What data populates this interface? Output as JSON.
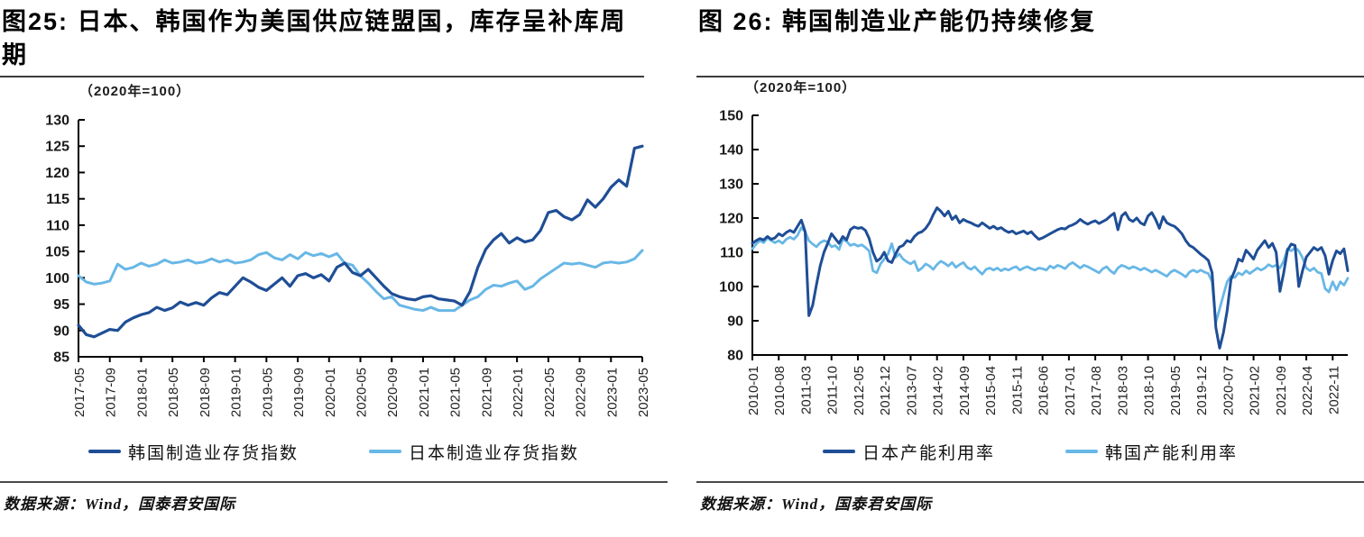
{
  "figures": [
    {
      "title": "图25: 日本、韩国作为美国供应链盟国，库存呈补库周期",
      "source": "数据来源：Wind，国泰君安国际"
    },
    {
      "title": "图 26: 韩国制造业产能仍持续修复",
      "source": "数据来源：Wind，国泰君安国际"
    }
  ],
  "chart_data": [
    {
      "type": "line",
      "title": "日本、韩国作为美国供应链盟国，库存呈补库周期",
      "unit_label": "（2020年=100）",
      "ylim": [
        85,
        130
      ],
      "yticks": [
        85,
        90,
        95,
        100,
        105,
        110,
        115,
        120,
        125,
        130
      ],
      "x_start": "2017-05",
      "months_per_tick": 4,
      "x_tick_labels": [
        "2017-05",
        "2017-09",
        "2018-01",
        "2018-05",
        "2018-09",
        "2019-01",
        "2019-05",
        "2019-09",
        "2020-01",
        "2020-05",
        "2020-09",
        "2021-01",
        "2021-05",
        "2021-09",
        "2022-01",
        "2022-05",
        "2022-09",
        "2023-01",
        "2023-05"
      ],
      "grid": false,
      "legend_position": "bottom",
      "series": [
        {
          "name": "韩国制造业存货指数",
          "color": "#1f4e96",
          "values": [
            91.0,
            89.2,
            88.8,
            89.5,
            90.2,
            90.0,
            91.6,
            92.4,
            93.0,
            93.4,
            94.4,
            93.8,
            94.3,
            95.4,
            94.8,
            95.3,
            94.8,
            96.2,
            97.2,
            96.8,
            98.4,
            100.0,
            99.2,
            98.2,
            97.6,
            98.8,
            100.0,
            98.4,
            100.4,
            100.8,
            100.0,
            100.6,
            99.4,
            102.0,
            102.8,
            101.0,
            100.4,
            101.6,
            100.0,
            98.4,
            97.0,
            96.4,
            96.0,
            95.8,
            96.4,
            96.6,
            96.0,
            95.8,
            95.6,
            94.8,
            97.4,
            102.0,
            105.4,
            107.2,
            108.4,
            106.6,
            107.6,
            106.8,
            107.2,
            109.0,
            112.4,
            112.8,
            111.6,
            111.0,
            112.0,
            114.8,
            113.4,
            115.0,
            117.2,
            118.6,
            117.4,
            124.6,
            125.0
          ]
        },
        {
          "name": "日本制造业存货指数",
          "color": "#68b7e6",
          "values": [
            100.4,
            99.2,
            98.8,
            99.0,
            99.4,
            102.6,
            101.6,
            102.0,
            102.8,
            102.2,
            102.6,
            103.4,
            102.8,
            103.0,
            103.4,
            102.8,
            103.0,
            103.6,
            103.0,
            103.4,
            102.8,
            103.0,
            103.4,
            104.4,
            104.8,
            103.8,
            103.4,
            104.4,
            103.6,
            104.8,
            104.2,
            104.6,
            104.0,
            104.6,
            102.8,
            102.4,
            100.4,
            99.0,
            97.4,
            96.0,
            96.4,
            94.8,
            94.4,
            94.0,
            93.8,
            94.4,
            93.8,
            93.8,
            93.8,
            94.8,
            95.8,
            96.4,
            97.8,
            98.6,
            98.4,
            99.0,
            99.4,
            97.8,
            98.4,
            99.8,
            100.8,
            101.8,
            102.8,
            102.6,
            102.8,
            102.4,
            102.0,
            102.8,
            103.0,
            102.8,
            103.0,
            103.6,
            105.2
          ]
        }
      ]
    },
    {
      "type": "line",
      "title": "韩国制造业产能仍持续修复",
      "unit_label": "（2020年=100）",
      "ylim": [
        80,
        150
      ],
      "yticks": [
        80,
        90,
        100,
        110,
        120,
        130,
        140,
        150
      ],
      "x_start": "2010-01",
      "months_per_tick": 7,
      "x_tick_labels": [
        "2010-01",
        "2010-08",
        "2011-03",
        "2011-10",
        "2012-05",
        "2012-12",
        "2013-07",
        "2014-02",
        "2014-09",
        "2015-04",
        "2015-11",
        "2016-06",
        "2017-01",
        "2017-08",
        "2018-03",
        "2018-10",
        "2019-05",
        "2019-12",
        "2020-07",
        "2021-02",
        "2021-09",
        "2022-04",
        "2022-11"
      ],
      "grid": false,
      "legend_position": "bottom",
      "series": [
        {
          "name": "日本产能利用率",
          "color": "#1f4e96",
          "values": [
            112.6,
            113.4,
            114.0,
            113.6,
            114.6,
            113.8,
            114.2,
            115.4,
            114.8,
            115.8,
            116.4,
            115.8,
            117.6,
            119.4,
            116.0,
            91.5,
            94.5,
            100.5,
            106.0,
            110.0,
            112.6,
            115.4,
            114.0,
            112.6,
            114.6,
            113.6,
            116.6,
            117.4,
            117.0,
            117.2,
            116.4,
            114.0,
            110.0,
            107.4,
            108.2,
            110.0,
            107.5,
            107.0,
            109.5,
            111.5,
            112.0,
            113.4,
            113.0,
            114.6,
            115.6,
            116.0,
            117.0,
            118.6,
            121.0,
            123.0,
            122.0,
            120.6,
            122.0,
            119.6,
            120.6,
            118.6,
            119.6,
            119.0,
            118.6,
            118.0,
            117.6,
            118.6,
            117.8,
            117.0,
            117.6,
            116.8,
            117.2,
            116.4,
            115.8,
            116.2,
            115.4,
            115.8,
            116.2,
            115.4,
            116.0,
            114.8,
            113.8,
            114.2,
            114.8,
            115.4,
            116.0,
            116.6,
            117.0,
            116.8,
            117.6,
            118.0,
            118.6,
            119.6,
            118.8,
            118.2,
            118.8,
            119.2,
            118.4,
            119.0,
            119.6,
            120.6,
            121.4,
            116.6,
            120.6,
            121.6,
            119.6,
            119.0,
            120.0,
            118.6,
            118.0,
            120.6,
            121.6,
            119.6,
            117.0,
            120.4,
            118.6,
            118.0,
            117.6,
            116.6,
            115.4,
            113.4,
            112.0,
            111.4,
            110.4,
            109.4,
            108.6,
            107.6,
            104.0,
            88.0,
            82.0,
            86.5,
            93.0,
            102.0,
            104.6,
            108.0,
            107.4,
            110.6,
            109.4,
            108.0,
            110.6,
            112.0,
            113.4,
            111.4,
            112.6,
            110.0,
            98.6,
            104.0,
            110.6,
            112.4,
            112.0,
            100.0,
            104.6,
            108.6,
            110.0,
            111.4,
            110.6,
            111.4,
            109.0,
            103.6,
            107.6,
            110.4,
            109.6,
            111.0,
            104.6
          ]
        },
        {
          "name": "韩国产能利用率",
          "color": "#68b7e6",
          "values": [
            111.0,
            112.4,
            113.4,
            112.8,
            114.2,
            113.4,
            112.8,
            113.4,
            112.6,
            113.8,
            114.4,
            113.8,
            115.0,
            117.2,
            116.0,
            113.4,
            112.4,
            111.6,
            112.8,
            113.4,
            113.0,
            111.6,
            112.0,
            110.8,
            113.8,
            113.2,
            112.0,
            112.4,
            111.8,
            112.2,
            111.4,
            110.4,
            104.6,
            104.0,
            106.6,
            108.0,
            109.5,
            112.5,
            108.5,
            109.5,
            108.0,
            107.2,
            106.6,
            107.4,
            104.6,
            105.4,
            106.6,
            106.0,
            105.0,
            106.4,
            107.4,
            106.8,
            106.0,
            107.0,
            105.6,
            106.4,
            107.0,
            105.6,
            105.0,
            105.8,
            104.6,
            103.6,
            105.0,
            105.4,
            104.8,
            105.4,
            104.6,
            105.2,
            104.8,
            105.4,
            105.8,
            104.8,
            105.4,
            105.8,
            105.2,
            104.8,
            105.4,
            105.2,
            104.8,
            106.0,
            105.4,
            106.2,
            105.8,
            105.2,
            106.4,
            107.0,
            106.2,
            105.4,
            106.2,
            105.8,
            105.2,
            104.6,
            104.0,
            105.2,
            105.8,
            104.6,
            103.8,
            105.4,
            106.2,
            105.8,
            105.2,
            105.8,
            105.4,
            104.8,
            105.4,
            104.8,
            104.2,
            104.8,
            104.2,
            103.6,
            103.0,
            104.2,
            104.8,
            104.2,
            103.6,
            102.8,
            104.2,
            104.8,
            104.2,
            104.8,
            104.2,
            103.8,
            101.4,
            89.5,
            93.5,
            97.5,
            101.4,
            103.0,
            102.6,
            104.0,
            103.4,
            104.6,
            103.8,
            104.6,
            105.4,
            104.8,
            105.4,
            106.4,
            105.8,
            106.2,
            105.4,
            107.4,
            111.0,
            110.4,
            111.4,
            110.4,
            108.4,
            105.4,
            104.6,
            105.4,
            104.2,
            103.8,
            99.4,
            98.4,
            101.4,
            99.0,
            101.4,
            100.4,
            102.4
          ]
        }
      ]
    }
  ]
}
